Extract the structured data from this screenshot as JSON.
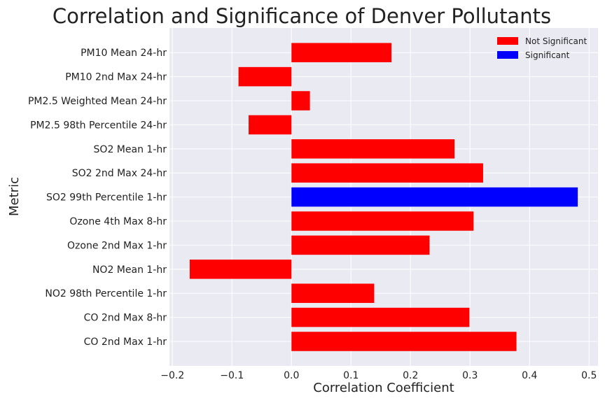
{
  "chart_data": {
    "type": "bar",
    "orientation": "horizontal",
    "title": "Correlation and Significance of Denver Pollutants",
    "xlabel": "Correlation Coefficient",
    "ylabel": "Metric",
    "xlim": [
      -0.205,
      0.515
    ],
    "xticks": [
      -0.2,
      -0.1,
      0.0,
      0.1,
      0.2,
      0.3,
      0.4,
      0.5
    ],
    "xtick_labels": [
      "−0.2",
      "−0.1",
      "0.0",
      "0.1",
      "0.2",
      "0.3",
      "0.4",
      "0.5"
    ],
    "grid": true,
    "legend_position": "top-right",
    "categories": [
      "CO 2nd Max 1-hr",
      "CO 2nd Max 8-hr",
      "NO2 98th Percentile 1-hr",
      "NO2 Mean 1-hr",
      "Ozone 2nd Max 1-hr",
      "Ozone 4th Max 8-hr",
      "SO2 99th Percentile 1-hr",
      "SO2 2nd Max 24-hr",
      "SO2 Mean 1-hr",
      "PM2.5 98th Percentile 24-hr",
      "PM2.5 Weighted Mean 24-hr",
      "PM10 2nd Max 24-hr",
      "PM10 Mean 24-hr"
    ],
    "values": [
      0.378,
      0.299,
      0.139,
      -0.171,
      0.232,
      0.306,
      0.481,
      0.322,
      0.274,
      -0.072,
      0.031,
      -0.089,
      0.168
    ],
    "significant": [
      false,
      false,
      false,
      false,
      false,
      false,
      true,
      false,
      false,
      false,
      false,
      false,
      false
    ],
    "legend": [
      {
        "label": "Not Significant",
        "color": "#ff0000"
      },
      {
        "label": "Significant",
        "color": "#0000ff"
      }
    ],
    "colors": {
      "not_significant": "#ff0000",
      "significant": "#0000ff",
      "plot_background": "#eaeaf2",
      "grid": "#ffffff"
    }
  }
}
